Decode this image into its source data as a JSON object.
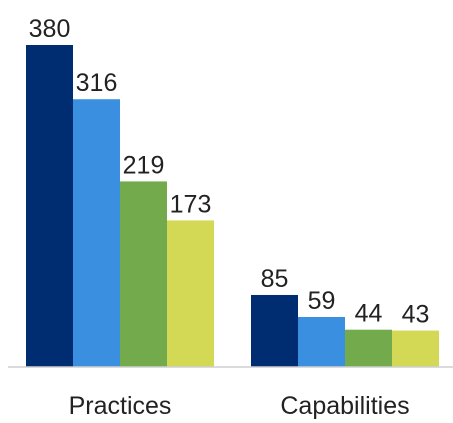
{
  "chart_data": {
    "type": "bar",
    "categories": [
      "Practices",
      "Capabilities"
    ],
    "series": [
      {
        "values": [
          380,
          85
        ],
        "color": "#002d72"
      },
      {
        "values": [
          316,
          59
        ],
        "color": "#3b8fe0"
      },
      {
        "values": [
          219,
          44
        ],
        "color": "#72aa4c"
      },
      {
        "values": [
          173,
          43
        ],
        "color": "#d4d955"
      }
    ],
    "ylim": [
      0,
      400
    ],
    "grid": false,
    "legend": "none"
  }
}
